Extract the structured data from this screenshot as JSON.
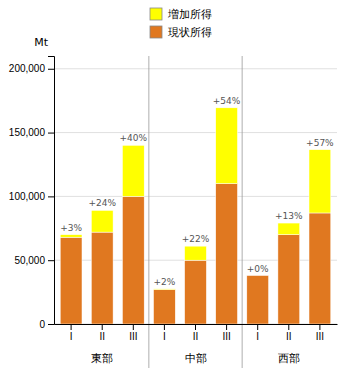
{
  "chart_data": {
    "type": "bar",
    "stacked": true,
    "grid": true,
    "legend": "top",
    "categories": [
      "I",
      "II",
      "III",
      "I",
      "II",
      "III",
      "I",
      "II",
      "III"
    ],
    "groups": [
      "東部",
      "中部",
      "西部"
    ],
    "series": [
      {
        "name": "現状所得",
        "color": "#E07820",
        "values": [
          68000,
          72000,
          100000,
          27000,
          50000,
          110000,
          38000,
          70000,
          87000
        ]
      },
      {
        "name": "増加所得",
        "color": "#FFFF00",
        "values": [
          2000,
          17000,
          40000,
          540,
          11000,
          59400,
          0,
          9100,
          49590
        ]
      }
    ],
    "annotations": [
      "+3%",
      "+24%",
      "+40%",
      "+2%",
      "+22%",
      "+54%",
      "+0%",
      "+13%",
      "+57%"
    ],
    "ylabel": "Mt",
    "ylim": [
      0,
      210000
    ],
    "yticks": [
      0,
      {
        "value": 50000,
        "label": "50,000"
      },
      {
        "value": 100000,
        "label": "100,000"
      },
      {
        "value": 150000,
        "label": "150,000"
      },
      {
        "value": 200000,
        "label": "200,000"
      }
    ]
  }
}
